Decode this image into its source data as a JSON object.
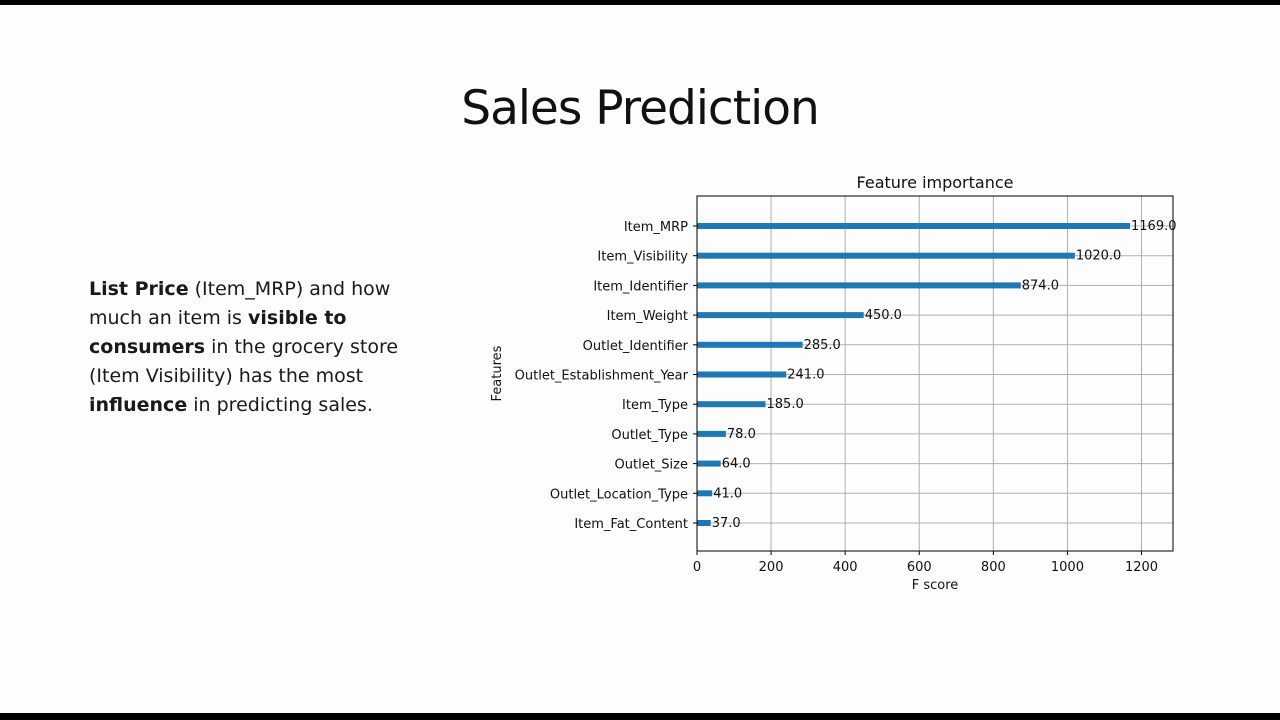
{
  "slide": {
    "title": "Sales Prediction",
    "body": {
      "s1_bold": "List Price",
      "s2": " (Item_MRP) and how much an item is ",
      "s3_bold": "visible to consumers",
      "s4": " in the grocery store (Item Visibility) has the most ",
      "s5_bold": "influence",
      "s6": " in predicting sales."
    }
  },
  "chart_data": {
    "type": "bar",
    "orientation": "horizontal",
    "title": "Feature importance",
    "xlabel": "F score",
    "ylabel": "Features",
    "xlim": [
      0,
      1285
    ],
    "xticks": [
      0,
      200,
      400,
      600,
      800,
      1000,
      1200
    ],
    "grid": true,
    "bar_color": "#1f77b4",
    "categories": [
      "Item_MRP",
      "Item_Visibility",
      "Item_Identifier",
      "Item_Weight",
      "Outlet_Identifier",
      "Outlet_Establishment_Year",
      "Item_Type",
      "Outlet_Type",
      "Outlet_Size",
      "Outlet_Location_Type",
      "Item_Fat_Content"
    ],
    "values": [
      1169,
      1020,
      874,
      450,
      285,
      241,
      185,
      78,
      64,
      41,
      37
    ],
    "value_labels": [
      "1169.0",
      "1020.0",
      "874.0",
      "450.0",
      "285.0",
      "241.0",
      "185.0",
      "78.0",
      "64.0",
      "41.0",
      "37.0"
    ]
  }
}
